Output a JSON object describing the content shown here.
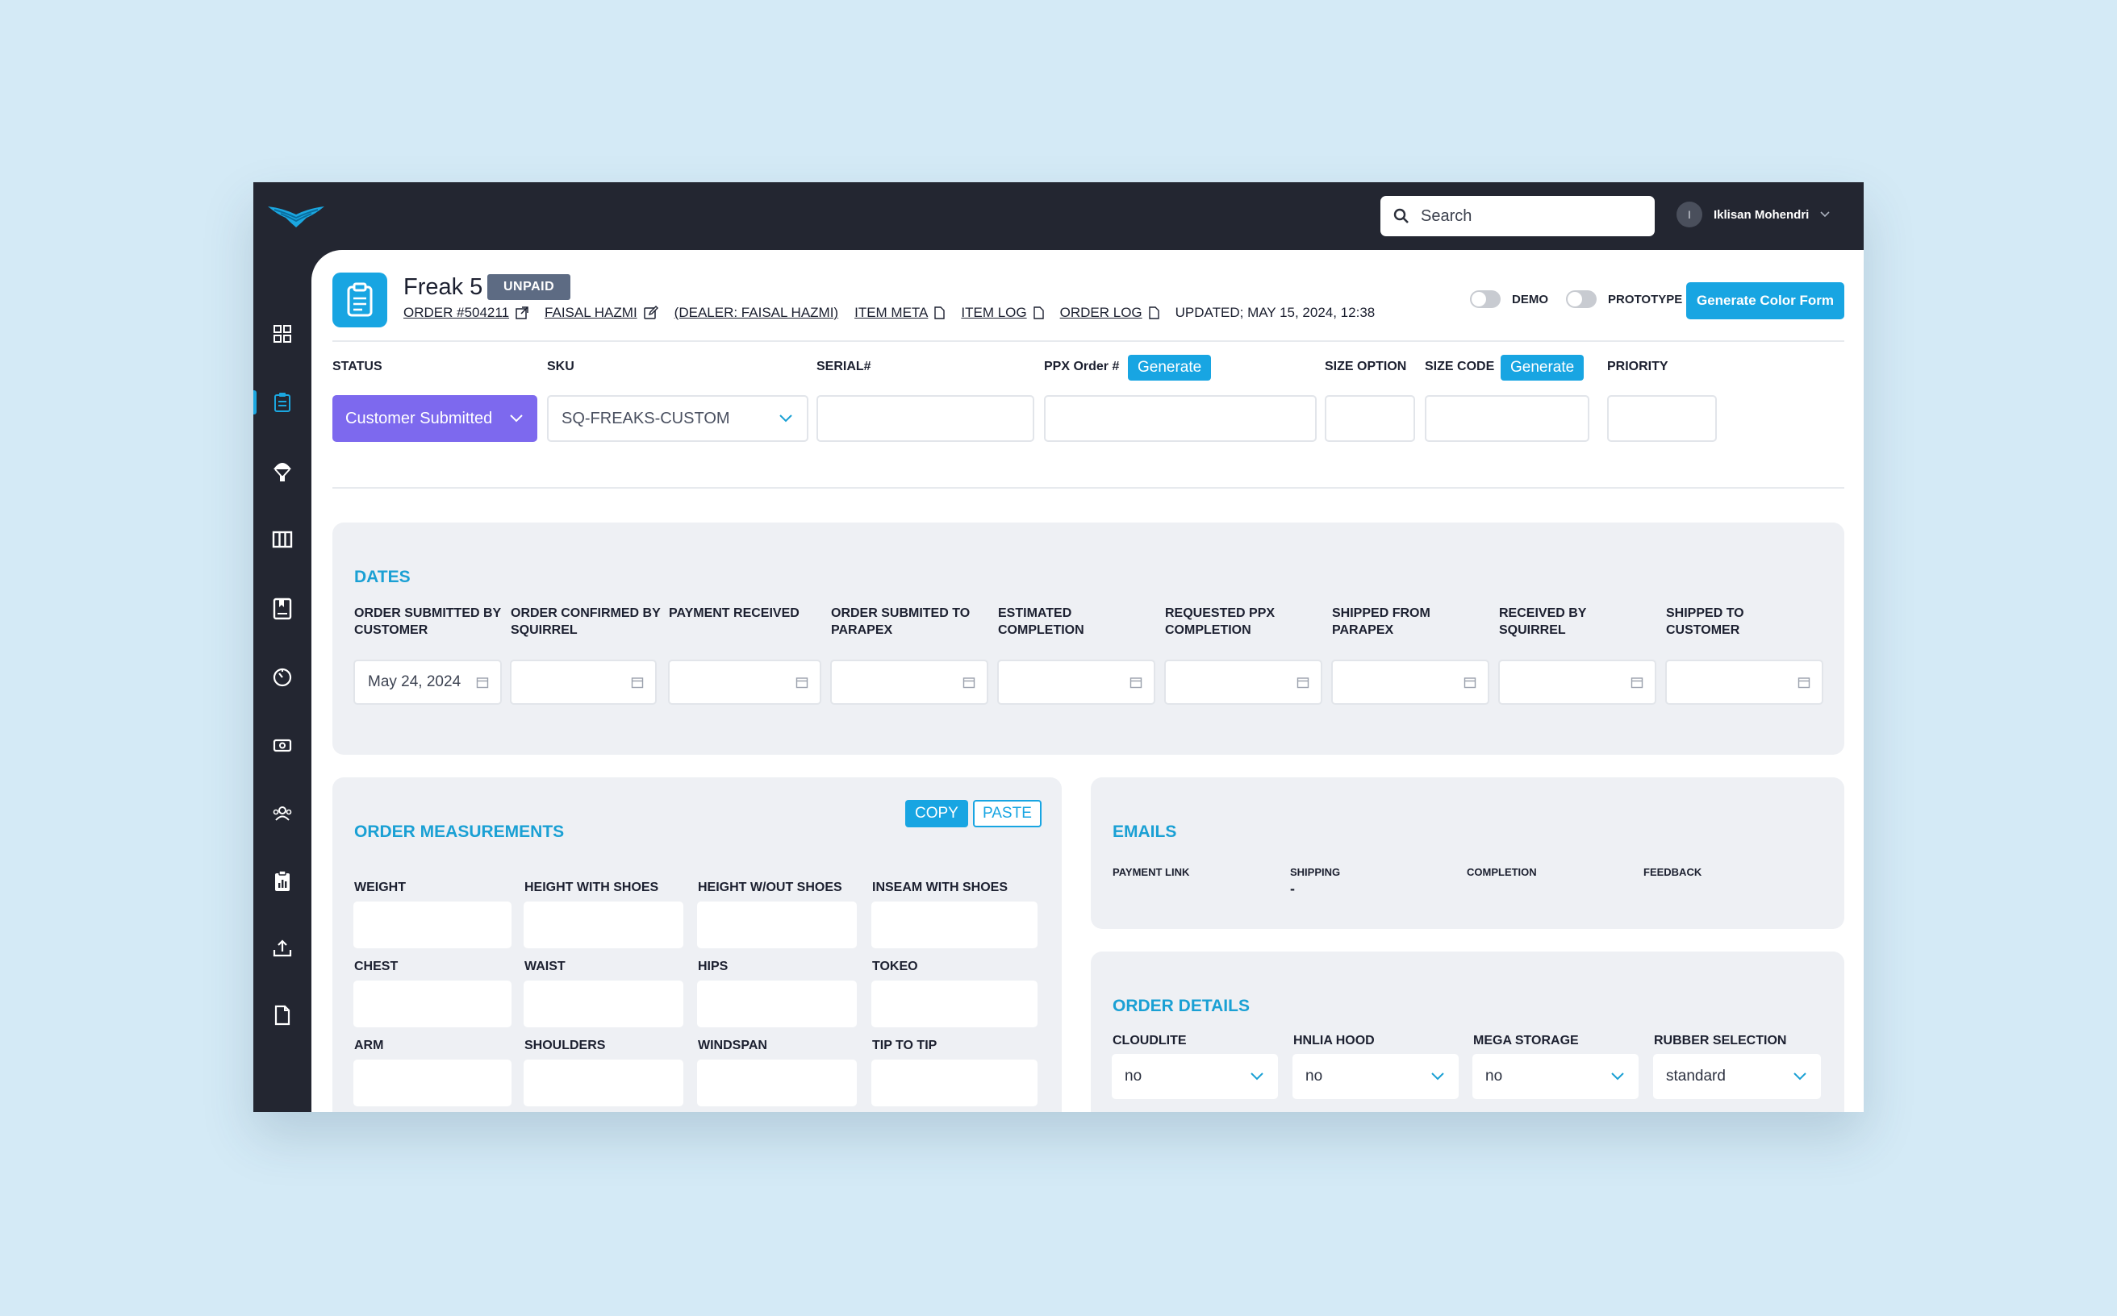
{
  "topbar": {
    "search_placeholder": "Search",
    "user_initial": "I",
    "user_name": "Iklisan Mohendri"
  },
  "sidebar": {
    "items": [
      "dashboard-icon",
      "orders-icon",
      "parachute-icon",
      "columns-icon",
      "catalog-icon",
      "gauge-icon",
      "payments-icon",
      "users-icon",
      "reports-icon",
      "upload-icon",
      "document-icon"
    ],
    "active_index": 1
  },
  "header": {
    "title": "Freak 5",
    "badge": "UNPAID",
    "order_link": "ORDER #504211",
    "customer_link": "FAISAL HAZMI",
    "dealer_link": "(DEALER: FAISAL HAZMI)",
    "item_meta": "ITEM META",
    "item_log": "ITEM LOG",
    "order_log": "ORDER LOG",
    "updated": "UPDATED; MAY 15, 2024, 12:38",
    "demo_label": "DEMO",
    "prototype_label": "PROTOTYPE",
    "generate_color_form": "Generate Color Form"
  },
  "top_fields": {
    "status_label": "STATUS",
    "status_value": "Customer Submitted",
    "sku_label": "SKU",
    "sku_value": "SQ-FREAKS-CUSTOM",
    "serial_label": "SERIAL#",
    "ppx_label": "PPX Order #",
    "generate": "Generate",
    "size_option_label": "SIZE OPTION",
    "size_code_label": "SIZE CODE",
    "priority_label": "PRIORITY"
  },
  "dates": {
    "title": "DATES",
    "fields": [
      {
        "label": "ORDER SUBMITTED BY CUSTOMER",
        "value": "May 24, 2024"
      },
      {
        "label": "ORDER CONFIRMED BY SQUIRREL",
        "value": ""
      },
      {
        "label": "PAYMENT RECEIVED",
        "value": ""
      },
      {
        "label": "ORDER SUBMITED TO PARAPEX",
        "value": ""
      },
      {
        "label": "ESTIMATED COMPLETION",
        "value": ""
      },
      {
        "label": "REQUESTED PPX COMPLETION",
        "value": ""
      },
      {
        "label": "SHIPPED FROM PARAPEX",
        "value": ""
      },
      {
        "label": "RECEIVED BY SQUIRREL",
        "value": ""
      },
      {
        "label": "SHIPPED TO CUSTOMER",
        "value": ""
      }
    ]
  },
  "measurements": {
    "title": "ORDER MEASUREMENTS",
    "copy": "COPY",
    "paste": "PASTE",
    "fields": [
      "WEIGHT",
      "HEIGHT WITH SHOES",
      "HEIGHT W/OUT SHOES",
      "INSEAM WITH SHOES",
      "CHEST",
      "WAIST",
      "HIPS",
      "TOKEO",
      "ARM",
      "SHOULDERS",
      "WINDSPAN",
      "TIP TO TIP"
    ]
  },
  "emails": {
    "title": "EMAILS",
    "columns": [
      {
        "label": "PAYMENT LINK",
        "value": ""
      },
      {
        "label": "SHIPPING",
        "value": "-"
      },
      {
        "label": "COMPLETION",
        "value": ""
      },
      {
        "label": "FEEDBACK",
        "value": ""
      }
    ]
  },
  "order_details": {
    "title": "ORDER DETAILS",
    "fields": [
      {
        "label": "CLOUDLITE",
        "value": "no"
      },
      {
        "label": "HNLIA HOOD",
        "value": "no"
      },
      {
        "label": "MEGA STORAGE",
        "value": "no"
      },
      {
        "label": "RUBBER SELECTION",
        "value": "standard"
      }
    ]
  },
  "colors": {
    "accent": "#18a5e2",
    "status": "#7d69ee",
    "sidebar": "#232631",
    "panel": "#eef0f4"
  }
}
